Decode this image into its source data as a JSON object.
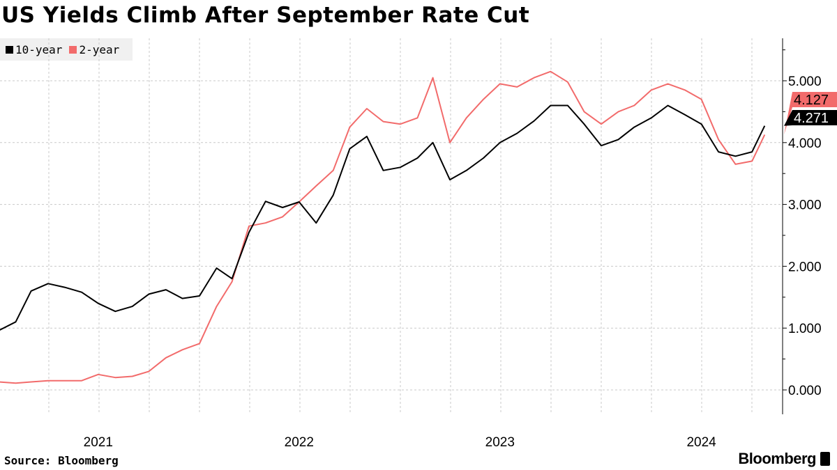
{
  "title": "US Yields Climb After September Rate Cut",
  "source": "Source: Bloomberg",
  "brand": "Bloomberg",
  "chart_data": {
    "type": "line",
    "title": "US Yields Climb After September Rate Cut",
    "xlabel": "",
    "ylabel": "",
    "ylim": [
      -0.35,
      5.7
    ],
    "yticks": [
      0,
      1,
      2,
      3,
      4,
      5
    ],
    "ytick_labels": [
      "0.000",
      "1.000",
      "2.000",
      "3.000",
      "4.000",
      "5.000"
    ],
    "xtick_labels": [
      "2021",
      "2022",
      "2023",
      "2024"
    ],
    "xtick_dates": [
      "2021-07-01",
      "2022-07-01",
      "2023-07-01",
      "2024-07-01"
    ],
    "grid": true,
    "legend_position": "top-left",
    "y_axis_side": "right",
    "x": [
      "2021-01-01",
      "2021-02-01",
      "2021-03-01",
      "2021-04-01",
      "2021-05-01",
      "2021-06-01",
      "2021-07-01",
      "2021-08-01",
      "2021-09-01",
      "2021-10-01",
      "2021-11-01",
      "2021-12-01",
      "2022-01-01",
      "2022-02-01",
      "2022-03-01",
      "2022-04-01",
      "2022-05-01",
      "2022-06-01",
      "2022-07-01",
      "2022-08-01",
      "2022-09-01",
      "2022-10-01",
      "2022-11-01",
      "2022-12-01",
      "2023-01-01",
      "2023-02-01",
      "2023-03-01",
      "2023-04-01",
      "2023-05-01",
      "2023-06-01",
      "2023-07-01",
      "2023-08-01",
      "2023-09-01",
      "2023-10-01",
      "2023-11-01",
      "2023-12-01",
      "2024-01-01",
      "2024-02-01",
      "2024-03-01",
      "2024-04-01",
      "2024-05-01",
      "2024-06-01",
      "2024-07-01",
      "2024-08-01",
      "2024-09-01",
      "2024-10-01",
      "2024-10-24"
    ],
    "series": [
      {
        "name": "10-year",
        "color": "#000000",
        "last_value_label": "4.271",
        "values": [
          0.96,
          1.1,
          1.6,
          1.72,
          1.66,
          1.58,
          1.4,
          1.27,
          1.35,
          1.55,
          1.62,
          1.48,
          1.52,
          1.97,
          1.8,
          2.55,
          3.05,
          2.95,
          3.04,
          2.7,
          3.15,
          3.9,
          4.1,
          3.55,
          3.6,
          3.75,
          4.0,
          3.4,
          3.55,
          3.75,
          4.0,
          4.15,
          4.35,
          4.6,
          4.6,
          4.3,
          3.95,
          4.05,
          4.25,
          4.4,
          4.6,
          4.45,
          4.3,
          3.85,
          3.78,
          3.85,
          4.271
        ]
      },
      {
        "name": "2-year",
        "color": "#f26b6b",
        "last_value_label": "4.127",
        "values": [
          0.13,
          0.11,
          0.13,
          0.15,
          0.15,
          0.15,
          0.25,
          0.2,
          0.22,
          0.3,
          0.52,
          0.65,
          0.75,
          1.35,
          1.75,
          2.65,
          2.7,
          2.8,
          3.04,
          3.3,
          3.55,
          4.25,
          4.55,
          4.34,
          4.3,
          4.4,
          5.05,
          4.0,
          4.4,
          4.7,
          4.95,
          4.9,
          5.05,
          5.15,
          4.98,
          4.5,
          4.3,
          4.5,
          4.6,
          4.85,
          4.95,
          4.85,
          4.7,
          4.05,
          3.65,
          3.7,
          4.127
        ]
      }
    ]
  }
}
